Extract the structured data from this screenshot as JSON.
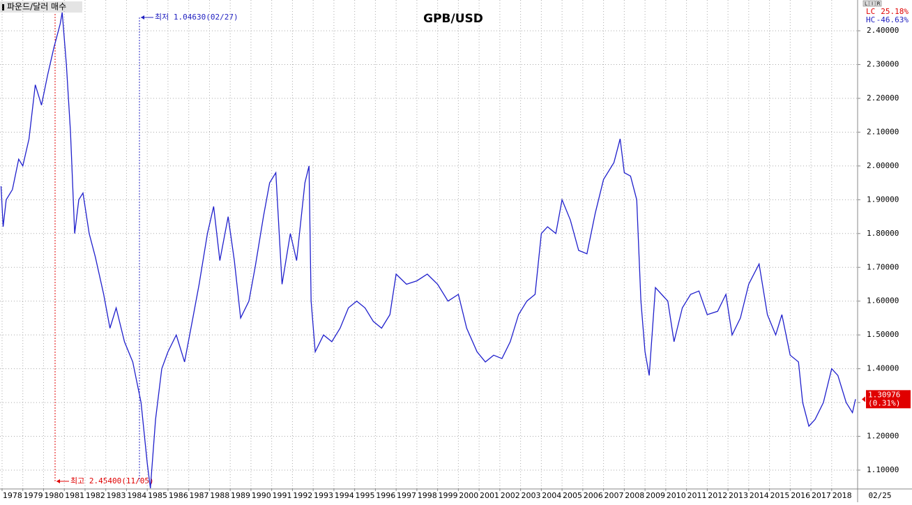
{
  "chart_data": {
    "type": "line",
    "title": "GPB/USD",
    "series_label": "파운드/달러 매수",
    "scale_buttons": [
      "L",
      "I",
      "R"
    ],
    "stats": [
      {
        "name": "LC",
        "value": 25.18,
        "label": "25.18%",
        "color": "#e00000"
      },
      {
        "name": "HC",
        "value": -46.63,
        "label": "-46.63%",
        "color": "#2020c0"
      }
    ],
    "last_value": 1.30976,
    "last_change": {
      "value": 0.31,
      "label": "(0.31%)"
    },
    "date_label": "02/25",
    "annotations": [
      {
        "text": "최고 2.45400(11/05)",
        "color": "#e00000"
      },
      {
        "text": "최저 1.04630(02/27)",
        "color": "#2020c0"
      }
    ],
    "grid": true,
    "x": [
      1977.95,
      1978.05,
      1978.2,
      1978.5,
      1978.8,
      1979.0,
      1979.3,
      1979.6,
      1979.9,
      1980.2,
      1980.5,
      1980.8,
      1980.9,
      1981.1,
      1981.3,
      1981.5,
      1981.7,
      1981.9,
      1982.2,
      1982.5,
      1982.9,
      1983.2,
      1983.5,
      1983.9,
      1984.3,
      1984.7,
      1985.0,
      1985.15,
      1985.4,
      1985.7,
      1986.0,
      1986.4,
      1986.8,
      1987.2,
      1987.5,
      1987.9,
      1988.2,
      1988.5,
      1988.9,
      1989.2,
      1989.5,
      1989.9,
      1990.2,
      1990.6,
      1990.9,
      1991.2,
      1991.5,
      1991.9,
      1992.2,
      1992.6,
      1992.8,
      1992.9,
      1993.1,
      1993.5,
      1993.9,
      1994.3,
      1994.7,
      1995.1,
      1995.5,
      1995.9,
      1996.3,
      1996.7,
      1997.0,
      1997.5,
      1998.0,
      1998.5,
      1999.0,
      1999.5,
      2000.0,
      2000.4,
      2000.9,
      2001.3,
      2001.7,
      2002.1,
      2002.5,
      2002.9,
      2003.3,
      2003.7,
      2004.0,
      2004.3,
      2004.7,
      2005.0,
      2005.4,
      2005.8,
      2006.2,
      2006.6,
      2007.0,
      2007.5,
      2007.8,
      2008.0,
      2008.3,
      2008.6,
      2008.8,
      2009.0,
      2009.2,
      2009.5,
      2009.8,
      2010.1,
      2010.4,
      2010.8,
      2011.2,
      2011.6,
      2012.0,
      2012.5,
      2012.9,
      2013.2,
      2013.6,
      2014.0,
      2014.5,
      2014.9,
      2015.3,
      2015.6,
      2016.0,
      2016.4,
      2016.6,
      2016.9,
      2017.2,
      2017.6,
      2018.0,
      2018.3,
      2018.7,
      2019.0,
      2019.15
    ],
    "series": [
      {
        "name": "GPB/USD",
        "color": "#1f1fcc",
        "values": [
          1.94,
          1.82,
          1.9,
          1.93,
          2.02,
          2.0,
          2.08,
          2.24,
          2.18,
          2.27,
          2.35,
          2.42,
          2.454,
          2.3,
          2.1,
          1.8,
          1.9,
          1.92,
          1.8,
          1.73,
          1.62,
          1.52,
          1.58,
          1.48,
          1.42,
          1.3,
          1.12,
          1.0463,
          1.25,
          1.4,
          1.45,
          1.5,
          1.42,
          1.55,
          1.65,
          1.8,
          1.88,
          1.72,
          1.85,
          1.72,
          1.55,
          1.6,
          1.7,
          1.85,
          1.95,
          1.98,
          1.65,
          1.8,
          1.72,
          1.95,
          2.0,
          1.6,
          1.45,
          1.5,
          1.48,
          1.52,
          1.58,
          1.6,
          1.58,
          1.54,
          1.52,
          1.56,
          1.68,
          1.65,
          1.66,
          1.68,
          1.65,
          1.6,
          1.62,
          1.52,
          1.45,
          1.42,
          1.44,
          1.43,
          1.48,
          1.56,
          1.6,
          1.62,
          1.8,
          1.82,
          1.8,
          1.9,
          1.84,
          1.75,
          1.74,
          1.86,
          1.96,
          2.01,
          2.08,
          1.98,
          1.97,
          1.9,
          1.6,
          1.45,
          1.38,
          1.64,
          1.62,
          1.6,
          1.48,
          1.58,
          1.62,
          1.63,
          1.56,
          1.57,
          1.62,
          1.5,
          1.55,
          1.65,
          1.71,
          1.56,
          1.5,
          1.56,
          1.44,
          1.42,
          1.3,
          1.23,
          1.25,
          1.3,
          1.4,
          1.38,
          1.3,
          1.27,
          1.30976
        ]
      }
    ],
    "xlim": [
      1977.9,
      2019.25
    ],
    "xticks": [
      1978,
      1979,
      1980,
      1981,
      1982,
      1983,
      1984,
      1985,
      1986,
      1987,
      1988,
      1989,
      1990,
      1991,
      1992,
      1993,
      1994,
      1995,
      1996,
      1997,
      1998,
      1999,
      2000,
      2001,
      2002,
      2003,
      2004,
      2005,
      2006,
      2007,
      2008,
      2009,
      2010,
      2011,
      2012,
      2013,
      2014,
      2015,
      2016,
      2017,
      2018
    ],
    "ylim": [
      1.0463,
      2.491
    ],
    "yticks": [
      {
        "value": 1.1,
        "label": "1.10000"
      },
      {
        "value": 1.2,
        "label": "1.20000"
      },
      {
        "value": 1.3,
        "label": "1.30000"
      },
      {
        "value": 1.4,
        "label": "1.40000"
      },
      {
        "value": 1.5,
        "label": "1.50000"
      },
      {
        "value": 1.6,
        "label": "1.60000"
      },
      {
        "value": 1.7,
        "label": "1.70000"
      },
      {
        "value": 1.8,
        "label": "1.80000"
      },
      {
        "value": 1.9,
        "label": "1.90000"
      },
      {
        "value": 2.0,
        "label": "2.00000"
      },
      {
        "value": 2.1,
        "label": "2.10000"
      },
      {
        "value": 2.2,
        "label": "2.20000"
      },
      {
        "value": 2.3,
        "label": "2.30000"
      },
      {
        "value": 2.4,
        "label": "2.40000"
      }
    ]
  }
}
